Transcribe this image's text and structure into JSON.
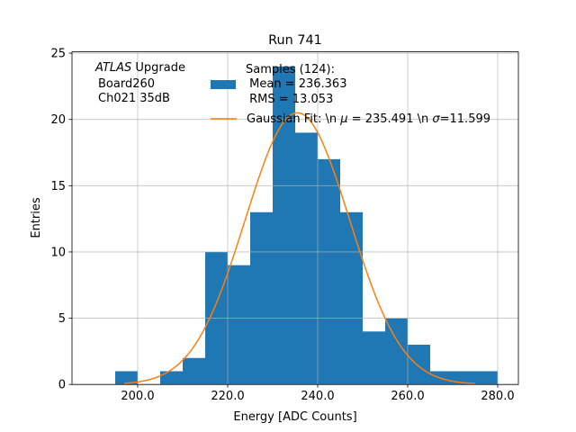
{
  "chart_data": {
    "type": "bar",
    "title": "Run 741",
    "xlabel": "Energy [ADC Counts]",
    "ylabel": "Entries",
    "xlim": [
      185.4,
      284.6
    ],
    "ylim": [
      0,
      25.1
    ],
    "grid": true,
    "xticks": [
      200,
      220,
      240,
      260,
      280
    ],
    "xtick_labels": [
      "200.0",
      "220.0",
      "240.0",
      "260.0",
      "280.0"
    ],
    "yticks": [
      0,
      5,
      10,
      15,
      20,
      25
    ],
    "ytick_labels": [
      "0",
      "5",
      "10",
      "15",
      "20",
      "25"
    ],
    "bin_edges": [
      195,
      200,
      205,
      210,
      215,
      220,
      225,
      230,
      235,
      240,
      245,
      250,
      255,
      260,
      265,
      270,
      275,
      280
    ],
    "values": [
      1,
      0,
      1,
      2,
      10,
      9,
      13,
      24,
      19,
      17,
      13,
      4,
      5,
      3,
      1,
      1,
      1
    ],
    "bar_color": "#1f77b4",
    "fit": {
      "mu": 235.491,
      "sigma": 11.599,
      "amplitude": 20.5,
      "range": [
        197,
        275
      ],
      "color": "#ff7f0e"
    },
    "annotation": {
      "italic": "ATLAS",
      "rest": " Upgrade",
      "line2": "Board260",
      "line3": "Ch021 35dB"
    },
    "legend": {
      "placement": "top-center",
      "entries": [
        {
          "lines": [
            "Samples (124):",
            " Mean = 236.363",
            " RMS = 13.053"
          ]
        },
        {
          "label_prefix": "Gaussian Fit: \\n ",
          "mu_symbol": "μ",
          "mu_text": " = 235.491 \\n ",
          "sigma_symbol": "σ",
          "sigma_text": "=11.599"
        }
      ]
    }
  }
}
